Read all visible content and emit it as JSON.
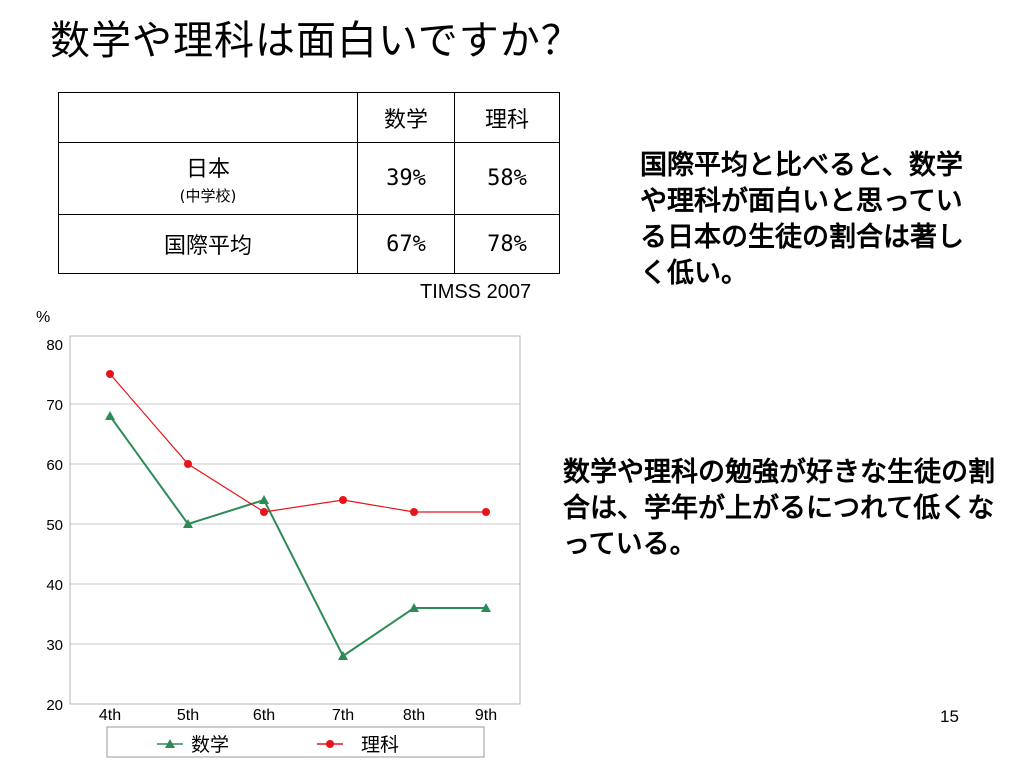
{
  "slide": {
    "title": "数学や理科は面白いですか？",
    "page_number": "15"
  },
  "table": {
    "header": [
      "",
      "数学",
      "理科"
    ],
    "rows": [
      {
        "label": "日本",
        "sublabel": "(中学校)",
        "math": "39%",
        "science": "58%"
      },
      {
        "label": "国際平均",
        "sublabel": "",
        "math": "67%",
        "science": "78%"
      }
    ],
    "source": "TIMSS  2007"
  },
  "notes": {
    "first": "国際平均と比べると、数学や理科が面白いと思っている日本の生徒の割合は著しく低い。",
    "second": "数学や理科の勉強が好きな生徒の割合は、学年が上がるにつれて低くなっている。"
  },
  "chart_data": {
    "type": "line",
    "ylabel": "%",
    "ylim": [
      20,
      80
    ],
    "yticks": [
      20,
      30,
      40,
      50,
      60,
      70,
      80
    ],
    "grid": true,
    "legend_position": "bottom",
    "categories": [
      "4th",
      "5th",
      "6th",
      "7th",
      "8th",
      "9th"
    ],
    "series": [
      {
        "name": "数学",
        "marker": "triangle",
        "color": "#2e8b57",
        "values": [
          68,
          50,
          54,
          28,
          36,
          36
        ]
      },
      {
        "name": "理科",
        "marker": "circle",
        "color": "#e8141b",
        "values": [
          75,
          60,
          52,
          54,
          52,
          52
        ]
      }
    ]
  }
}
